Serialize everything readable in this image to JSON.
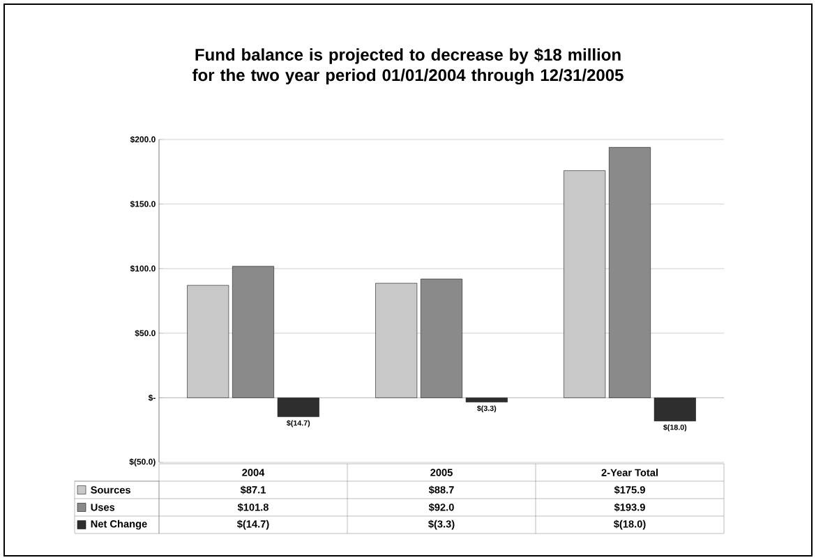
{
  "chart_data": {
    "type": "bar",
    "title": "Fund balance is projected to decrease by $18 million for the two year period 01/01/2004 through 12/31/2005",
    "categories": [
      "2004",
      "2005",
      "2-Year Total"
    ],
    "series": [
      {
        "name": "Sources",
        "color": "#c8c8c8",
        "values": [
          87.1,
          88.7,
          175.9
        ],
        "value_labels": [
          "$87.1",
          "$88.7",
          "$175.9"
        ]
      },
      {
        "name": "Uses",
        "color": "#8a8a8a",
        "values": [
          101.8,
          92.0,
          193.9
        ],
        "value_labels": [
          "$101.8",
          "$92.0",
          "$193.9"
        ]
      },
      {
        "name": "Net Change",
        "color": "#2e2e2e",
        "values": [
          -14.7,
          -3.3,
          -18.0
        ],
        "value_labels": [
          "$(14.7)",
          "$(3.3)",
          "$(18.0)"
        ]
      }
    ],
    "ylim": [
      -50,
      200
    ],
    "yticks": [
      {
        "value": -50,
        "label": "$(50.0)"
      },
      {
        "value": 0,
        "label": "$-"
      },
      {
        "value": 50,
        "label": "$50.0"
      },
      {
        "value": 100,
        "label": "$100.0"
      },
      {
        "value": 150,
        "label": "$150.0"
      },
      {
        "value": 200,
        "label": "$200.0"
      }
    ],
    "grid": "y",
    "legend": "bottom"
  }
}
